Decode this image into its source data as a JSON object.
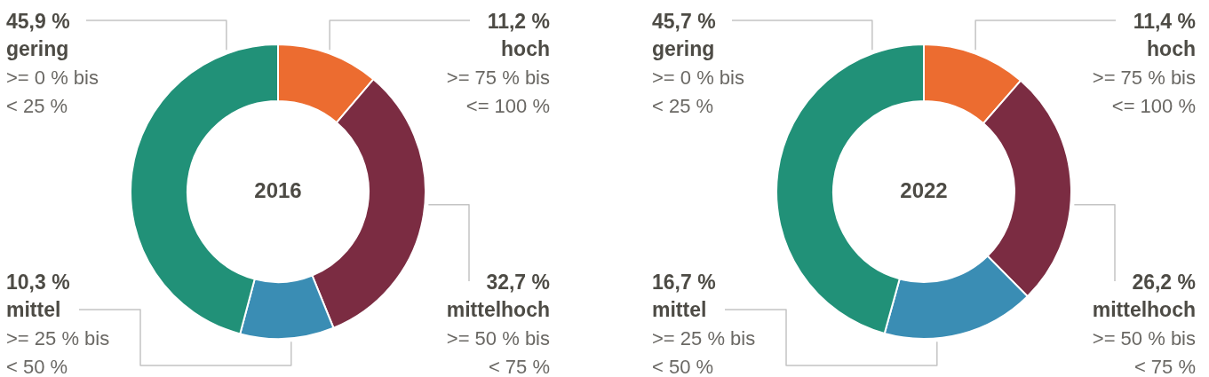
{
  "chart_data": [
    {
      "type": "donut",
      "title": "2016",
      "categories": [
        "hoch",
        "mittelhoch",
        "mittel",
        "gering"
      ],
      "values": [
        11.2,
        32.7,
        10.3,
        45.9
      ],
      "colors": [
        "#ec6c30",
        "#7b2c42",
        "#3a8db4",
        "#219178"
      ],
      "value_labels": [
        "11,2 %",
        "32,7 %",
        "10,3 %",
        "45,9 %"
      ],
      "annotations": [
        ">= 75 % bis\n<= 100 %",
        ">= 50 % bis\n< 75 %",
        ">= 25 % bis\n< 50 %",
        ">= 0 % bis\n< 25 %"
      ]
    },
    {
      "type": "donut",
      "title": "2022",
      "categories": [
        "hoch",
        "mittelhoch",
        "mittel",
        "gering"
      ],
      "values": [
        11.4,
        26.2,
        16.7,
        45.7
      ],
      "colors": [
        "#ec6c30",
        "#7b2c42",
        "#3a8db4",
        "#219178"
      ],
      "value_labels": [
        "11,4 %",
        "26,2 %",
        "16,7 %",
        "45,7 %"
      ],
      "annotations": [
        ">= 75 % bis\n<= 100 %",
        ">= 50 % bis\n< 75 %",
        ">= 25 % bis\n< 50 %",
        ">= 0 % bis\n< 25 %"
      ]
    }
  ]
}
